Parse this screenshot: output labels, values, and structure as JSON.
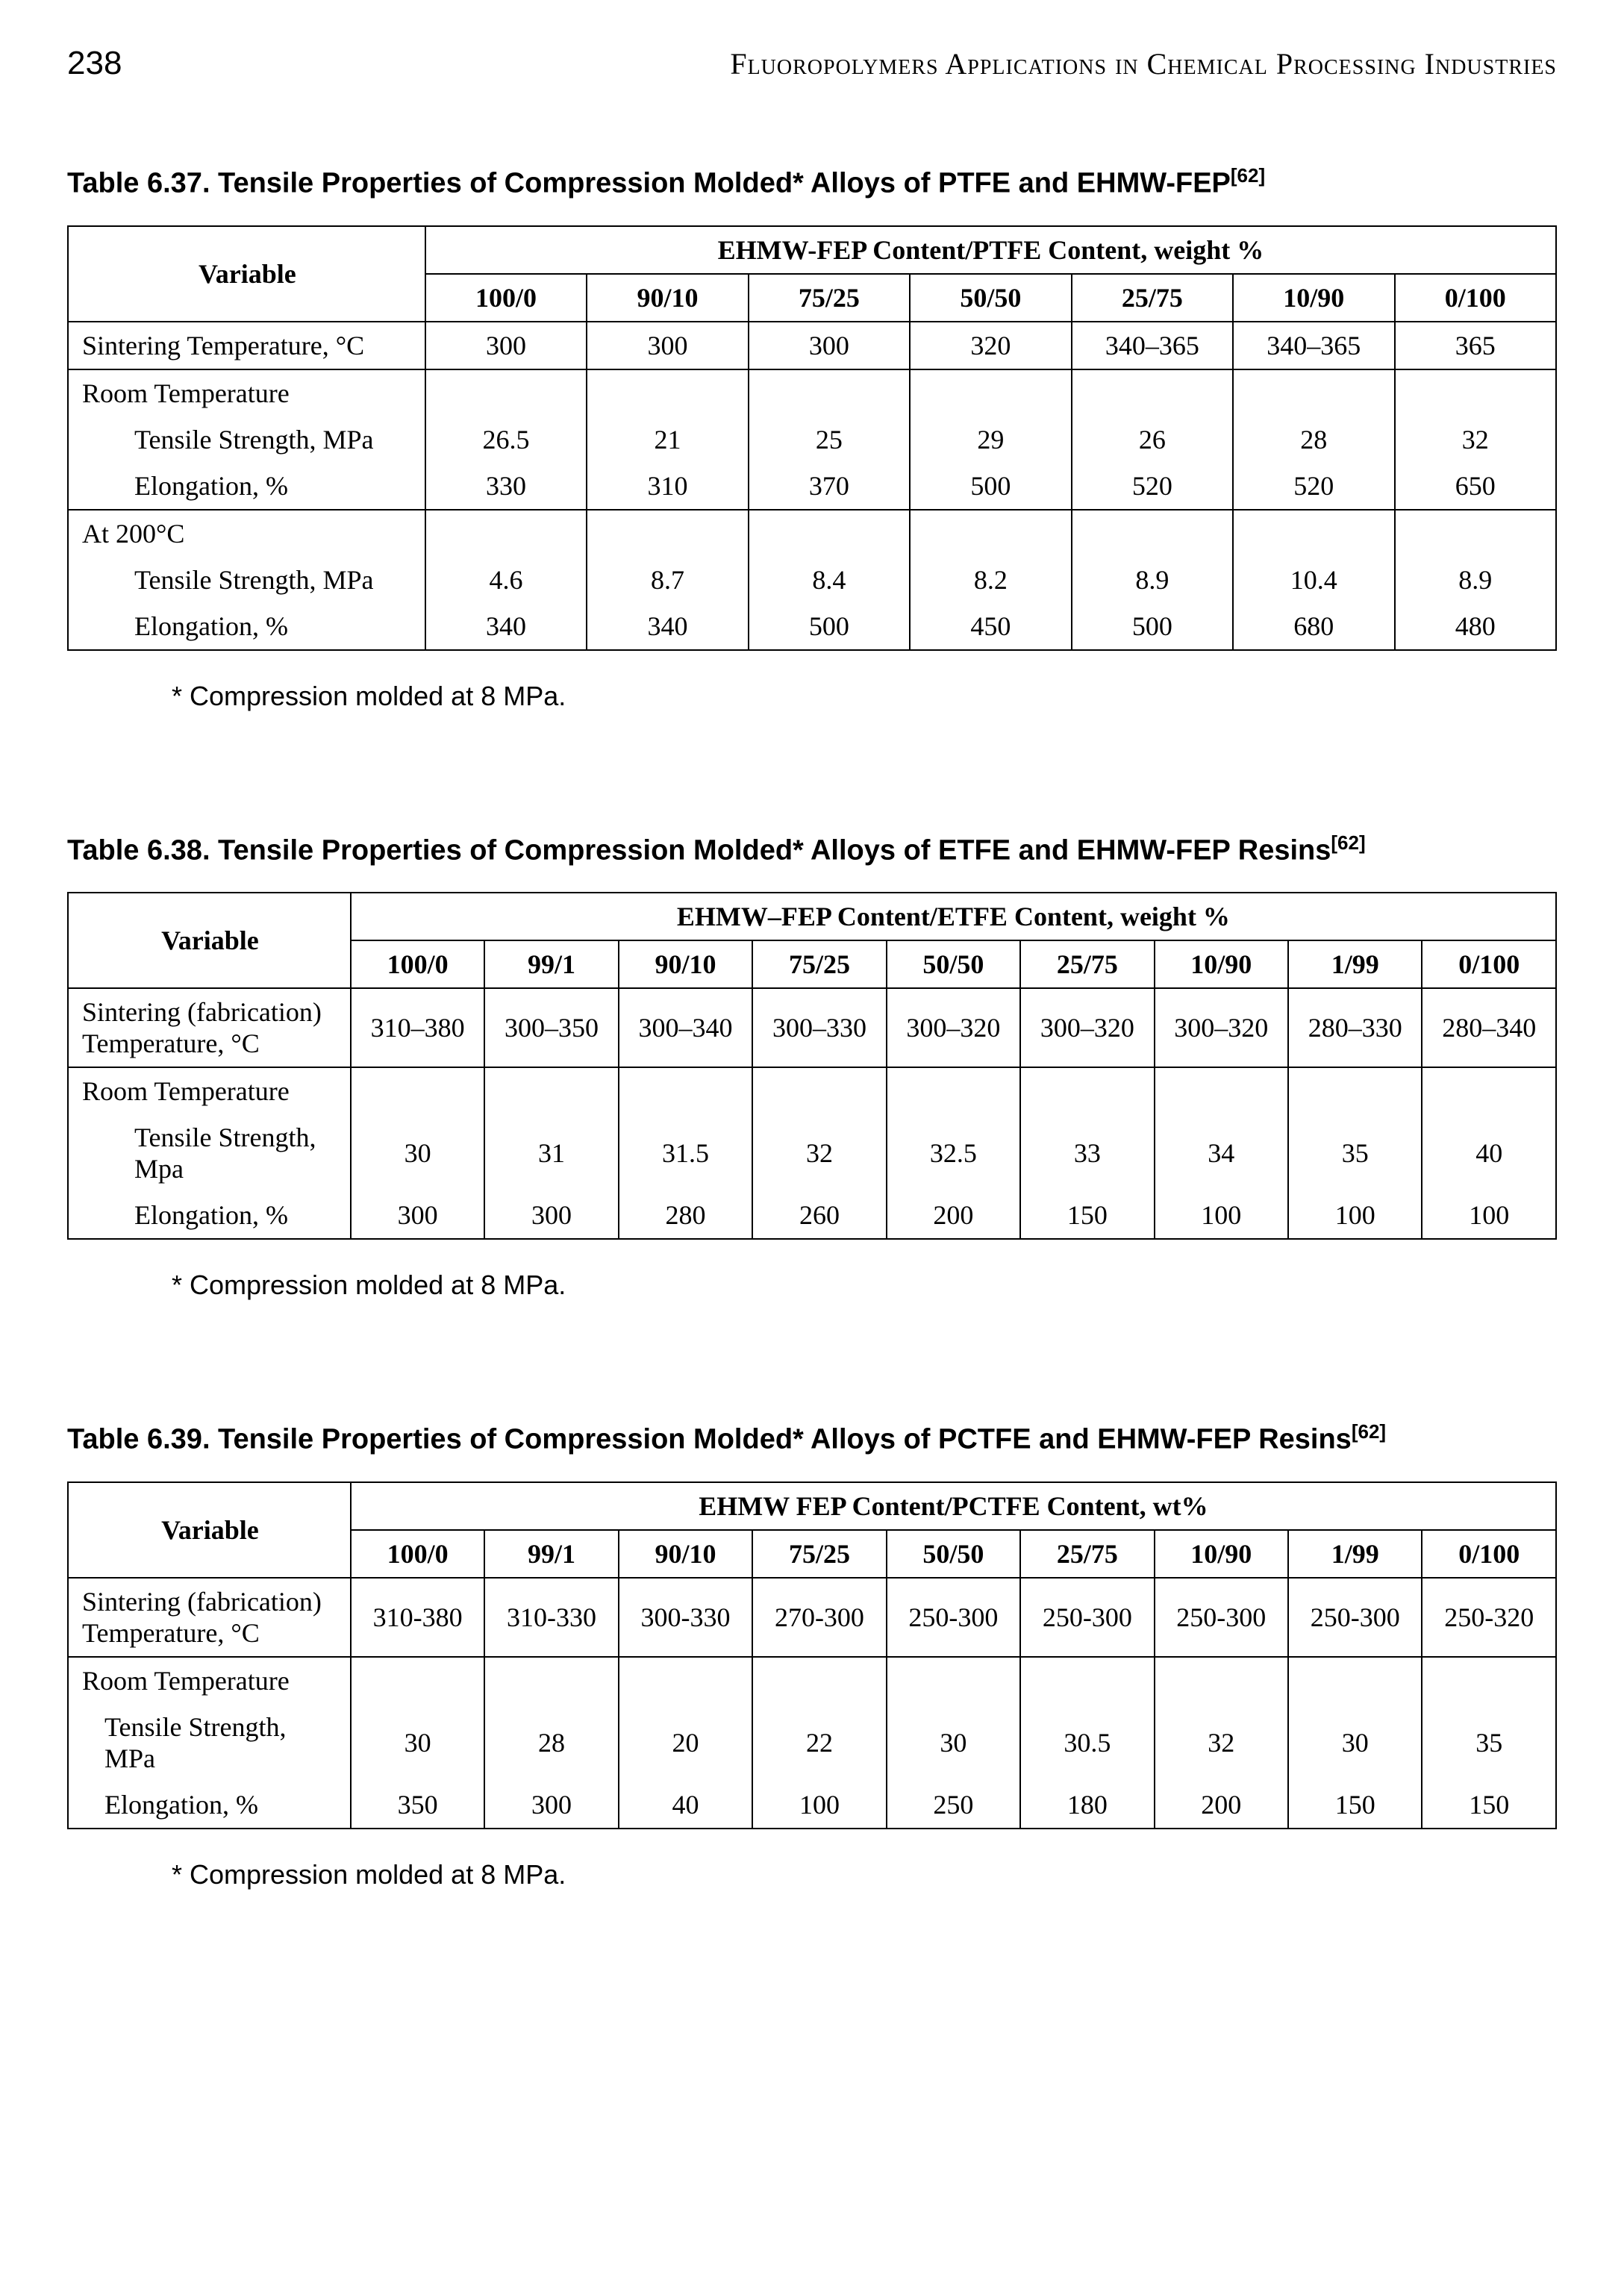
{
  "header": {
    "page_number": "238",
    "book_title": "Fluoropolymers Applications in Chemical Processing Industries"
  },
  "table1": {
    "caption_main": "Table 6.37. Tensile Properties of Compression Molded* Alloys of PTFE and EHMW-FEP",
    "caption_ref": "[62]",
    "var_header": "Variable",
    "group_header": "EHMW-FEP Content/PTFE Content, weight %",
    "columns": [
      "100/0",
      "90/10",
      "75/25",
      "50/50",
      "25/75",
      "10/90",
      "0/100"
    ],
    "rows": [
      {
        "label": "Sintering Temperature, °C",
        "values": [
          "300",
          "300",
          "300",
          "320",
          "340–365",
          "340–365",
          "365"
        ],
        "indent": 0,
        "section_start": true
      },
      {
        "label": "Room Temperature",
        "values": [
          "",
          "",
          "",
          "",
          "",
          "",
          ""
        ],
        "indent": 0,
        "section_start": true
      },
      {
        "label": "Tensile Strength, MPa",
        "values": [
          "26.5",
          "21",
          "25",
          "29",
          "26",
          "28",
          "32"
        ],
        "indent": 2
      },
      {
        "label": "Elongation, %",
        "values": [
          "330",
          "310",
          "370",
          "500",
          "520",
          "520",
          "650"
        ],
        "indent": 2
      },
      {
        "label": "At 200°C",
        "values": [
          "",
          "",
          "",
          "",
          "",
          "",
          ""
        ],
        "indent": 0,
        "section_start": true
      },
      {
        "label": "Tensile Strength, MPa",
        "values": [
          "4.6",
          "8.7",
          "8.4",
          "8.2",
          "8.9",
          "10.4",
          "8.9"
        ],
        "indent": 2
      },
      {
        "label": "Elongation, %",
        "values": [
          "340",
          "340",
          "500",
          "450",
          "500",
          "680",
          "480"
        ],
        "indent": 2
      }
    ],
    "footnote": "* Compression molded at 8 MPa."
  },
  "table2": {
    "caption_main": "Table 6.38.  Tensile Properties of Compression Molded* Alloys of ETFE and EHMW-FEP Resins",
    "caption_ref": "[62]",
    "var_header": "Variable",
    "group_header": "EHMW–FEP Content/ETFE Content, weight %",
    "columns": [
      "100/0",
      "99/1",
      "90/10",
      "75/25",
      "50/50",
      "25/75",
      "10/90",
      "1/99",
      "0/100"
    ],
    "rows": [
      {
        "label": "Sintering (fabrication) Temperature, °C",
        "values": [
          "310–380",
          "300–350",
          "300–340",
          "300–330",
          "300–320",
          "300–320",
          "300–320",
          "280–330",
          "280–340"
        ],
        "indent": 0,
        "section_start": true
      },
      {
        "label": "Room Temperature",
        "values": [
          "",
          "",
          "",
          "",
          "",
          "",
          "",
          "",
          ""
        ],
        "indent": 0,
        "section_start": true
      },
      {
        "label": "Tensile Strength, Mpa",
        "values": [
          "30",
          "31",
          "31.5",
          "32",
          "32.5",
          "33",
          "34",
          "35",
          "40"
        ],
        "indent": 2
      },
      {
        "label": "Elongation, %",
        "values": [
          "300",
          "300",
          "280",
          "260",
          "200",
          "150",
          "100",
          "100",
          "100"
        ],
        "indent": 2
      }
    ],
    "footnote": "* Compression molded at 8 MPa."
  },
  "table3": {
    "caption_main": "Table 6.39. Tensile Properties of Compression Molded* Alloys of PCTFE and EHMW-FEP Resins",
    "caption_ref": "[62]",
    "var_header": "Variable",
    "group_header": "EHMW FEP Content/PCTFE Content, wt%",
    "columns": [
      "100/0",
      "99/1",
      "90/10",
      "75/25",
      "50/50",
      "25/75",
      "10/90",
      "1/99",
      "0/100"
    ],
    "rows": [
      {
        "label": "Sintering (fabrication) Temperature, °C",
        "values": [
          "310-380",
          "310-330",
          "300-330",
          "270-300",
          "250-300",
          "250-300",
          "250-300",
          "250-300",
          "250-320"
        ],
        "indent": 0,
        "section_start": true
      },
      {
        "label": "Room Temperature",
        "values": [
          "",
          "",
          "",
          "",
          "",
          "",
          "",
          "",
          ""
        ],
        "indent": 0,
        "section_start": true
      },
      {
        "label": "Tensile Strength, MPa",
        "values": [
          "30",
          "28",
          "20",
          "22",
          "30",
          "30.5",
          "32",
          "30",
          "35"
        ],
        "indent": 1
      },
      {
        "label": "Elongation, %",
        "values": [
          "350",
          "300",
          "40",
          "100",
          "250",
          "180",
          "200",
          "150",
          "150"
        ],
        "indent": 1
      }
    ],
    "footnote": "* Compression molded at 8 MPa."
  }
}
